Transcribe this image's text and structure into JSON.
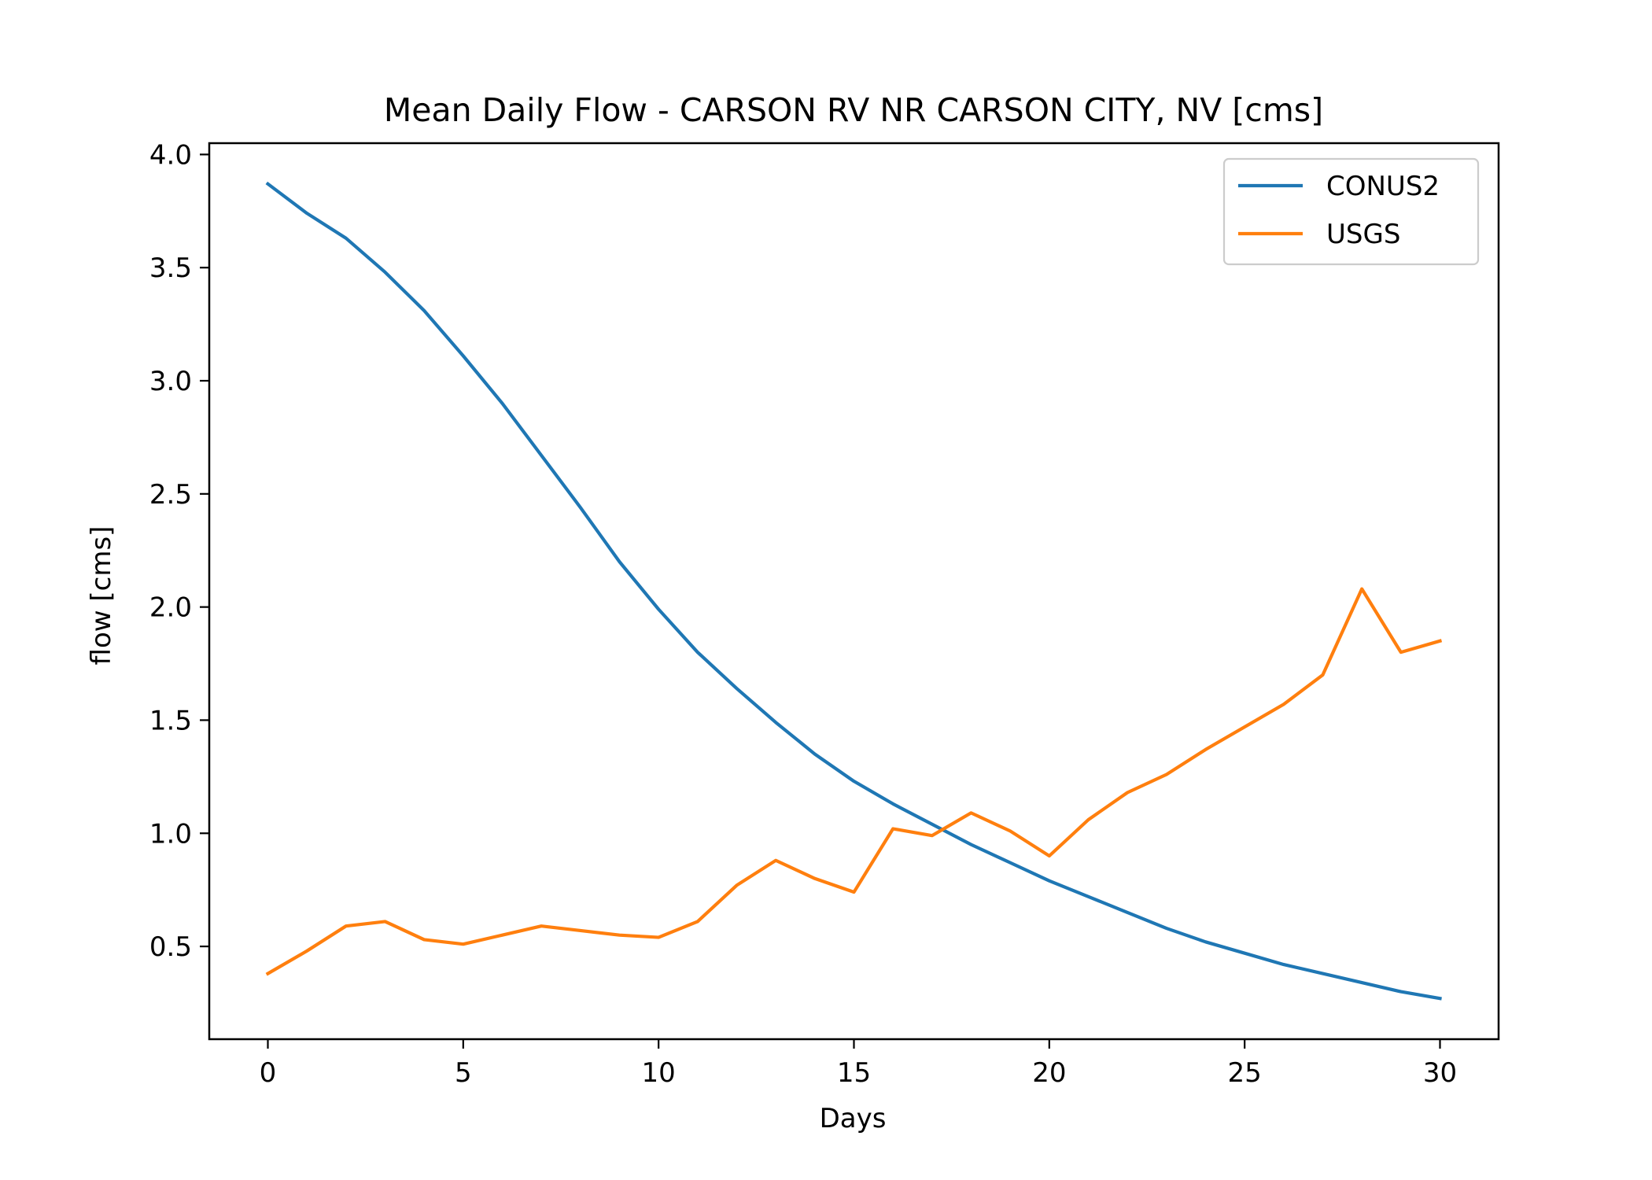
{
  "chart_data": {
    "type": "line",
    "title": "Mean Daily Flow - CARSON RV NR CARSON CITY, NV [cms]",
    "xlabel": "Days",
    "ylabel": "flow [cms]",
    "xlim": [
      -1.5,
      31.5
    ],
    "ylim": [
      0.09,
      4.05
    ],
    "x_ticks": [
      0,
      5,
      10,
      15,
      20,
      25,
      30
    ],
    "y_ticks": [
      0.5,
      1.0,
      1.5,
      2.0,
      2.5,
      3.0,
      3.5,
      4.0
    ],
    "x_tick_labels": [
      "0",
      "5",
      "10",
      "15",
      "20",
      "25",
      "30"
    ],
    "y_tick_labels": [
      "0.5",
      "1.0",
      "1.5",
      "2.0",
      "2.5",
      "3.0",
      "3.5",
      "4.0"
    ],
    "grid": false,
    "legend_position": "top-right",
    "x": [
      0,
      1,
      2,
      3,
      4,
      5,
      6,
      7,
      8,
      9,
      10,
      11,
      12,
      13,
      14,
      15,
      16,
      17,
      18,
      19,
      20,
      21,
      22,
      23,
      24,
      25,
      26,
      27,
      28,
      29,
      30
    ],
    "series": [
      {
        "name": "CONUS2",
        "color": "#1f77b4",
        "values": [
          3.87,
          3.74,
          3.63,
          3.48,
          3.31,
          3.11,
          2.9,
          2.67,
          2.44,
          2.2,
          1.99,
          1.8,
          1.64,
          1.49,
          1.35,
          1.23,
          1.13,
          1.04,
          0.95,
          0.87,
          0.79,
          0.72,
          0.65,
          0.58,
          0.52,
          0.47,
          0.42,
          0.38,
          0.34,
          0.3,
          0.27
        ]
      },
      {
        "name": "USGS",
        "color": "#ff7f0e",
        "values": [
          0.38,
          0.48,
          0.59,
          0.61,
          0.53,
          0.51,
          0.55,
          0.59,
          0.57,
          0.55,
          0.54,
          0.61,
          0.77,
          0.88,
          0.8,
          0.74,
          1.02,
          0.99,
          1.09,
          1.01,
          0.9,
          1.06,
          1.18,
          1.26,
          1.37,
          1.47,
          1.57,
          1.7,
          2.08,
          1.8,
          1.85
        ]
      }
    ]
  }
}
